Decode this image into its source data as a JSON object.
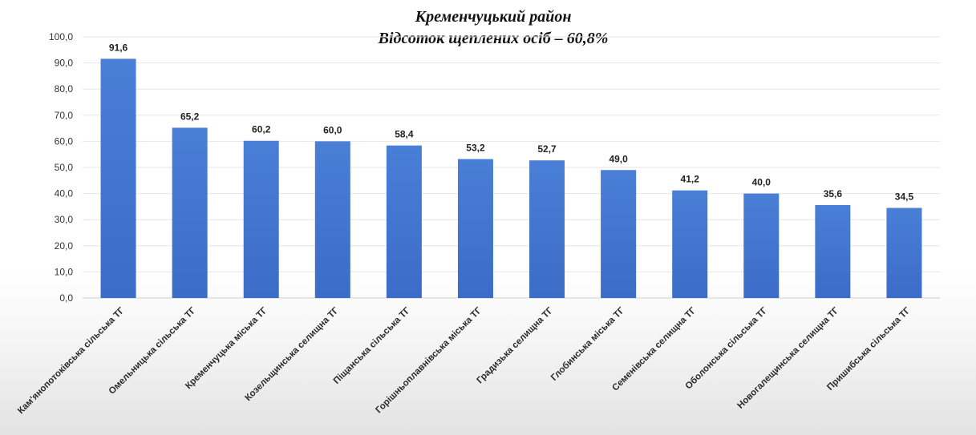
{
  "chart_data": {
    "type": "bar",
    "title": "Кременчуцький район",
    "subtitle": "Відсоток щеплених осіб – 60,8%",
    "xlabel": "",
    "ylabel": "",
    "ylim": [
      0,
      100
    ],
    "yticks": [
      "0,0",
      "10,0",
      "20,0",
      "30,0",
      "40,0",
      "50,0",
      "60,0",
      "70,0",
      "80,0",
      "90,0",
      "100,0"
    ],
    "grid": true,
    "legend": "none",
    "bar_color": "#3b6cc7",
    "categories": [
      "Кам'янопотоківська сільська ТГ",
      "Омельницька сільська ТГ",
      "Кременчуцька міська ТГ",
      "Козельщинська селищна ТГ",
      "Піщанська сільська ТГ",
      "Горішньоплавнівська міська ТГ",
      "Градизька селищна ТГ",
      "Глобинська міська ТГ",
      "Семенівська селищна ТГ",
      "Оболонська сільська ТГ",
      "Новогалещинська селищна ТГ",
      "Пришибська сільська ТГ"
    ],
    "values": [
      91.6,
      65.2,
      60.2,
      60.0,
      58.4,
      53.2,
      52.7,
      49.0,
      41.2,
      40.0,
      35.6,
      34.5
    ],
    "value_labels": [
      "91,6",
      "65,2",
      "60,2",
      "60,0",
      "58,4",
      "53,2",
      "52,7",
      "49,0",
      "41,2",
      "40,0",
      "35,6",
      "34,5"
    ]
  }
}
